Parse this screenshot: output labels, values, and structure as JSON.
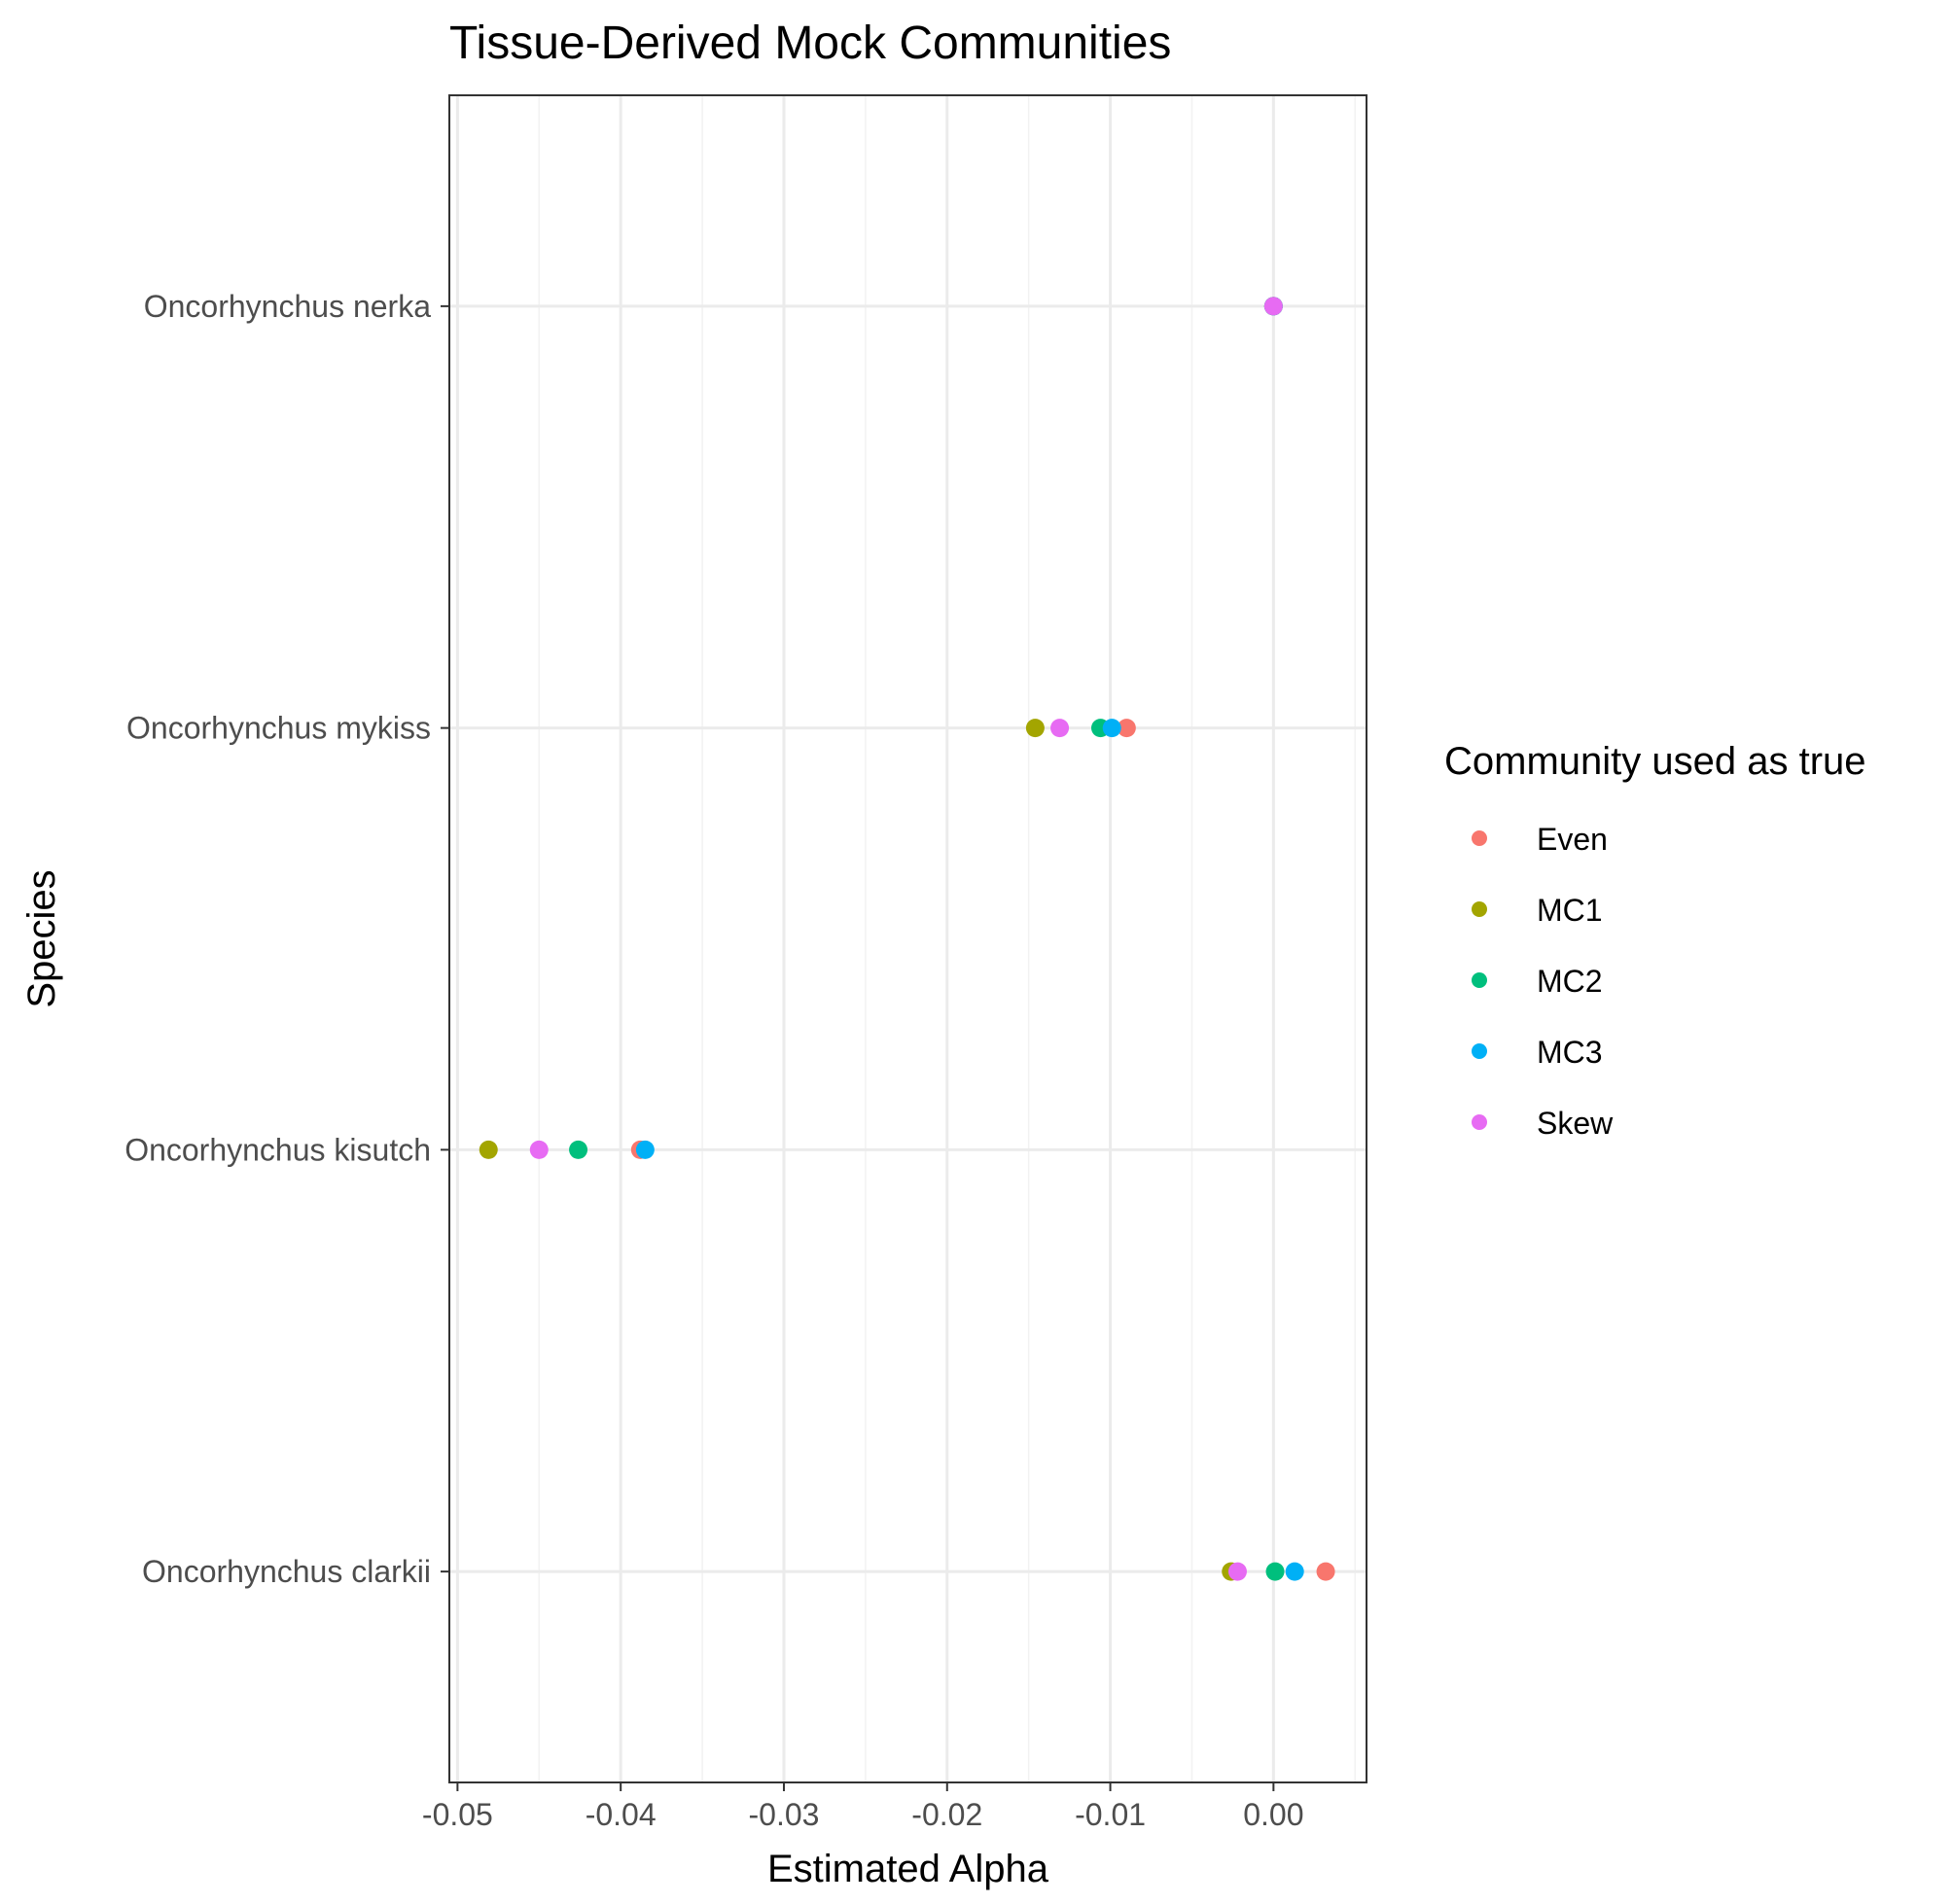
{
  "chart_data": {
    "type": "scatter",
    "title": "Tissue-Derived Mock Communities",
    "xlabel": "Estimated Alpha",
    "ylabel": "Species",
    "xlim": [
      -0.0505,
      0.0057
    ],
    "x_ticks": [
      "-0.05",
      "-0.04",
      "-0.03",
      "-0.02",
      "-0.01",
      "0.00"
    ],
    "categories": [
      "Oncorhynchus clarkii",
      "Oncorhynchus kisutch",
      "Oncorhynchus mykiss",
      "Oncorhynchus nerka"
    ],
    "grid": true,
    "legend": {
      "title": "Community used as true",
      "position": "right"
    },
    "series": [
      {
        "name": "Even",
        "color": "#F8766D",
        "values": [
          0.0032,
          -0.0388,
          -0.009,
          0.0
        ]
      },
      {
        "name": "MC1",
        "color": "#A3A500",
        "values": [
          -0.0026,
          -0.0481,
          -0.0146,
          0.0
        ]
      },
      {
        "name": "MC2",
        "color": "#00BF7D",
        "values": [
          0.0001,
          -0.0426,
          -0.0106,
          0.0
        ]
      },
      {
        "name": "MC3",
        "color": "#00B0F6",
        "values": [
          0.0013,
          -0.0385,
          -0.0099,
          0.0
        ]
      },
      {
        "name": "Skew",
        "color": "#E76BF3",
        "values": [
          -0.0022,
          -0.045,
          -0.0131,
          0.0
        ]
      }
    ]
  }
}
